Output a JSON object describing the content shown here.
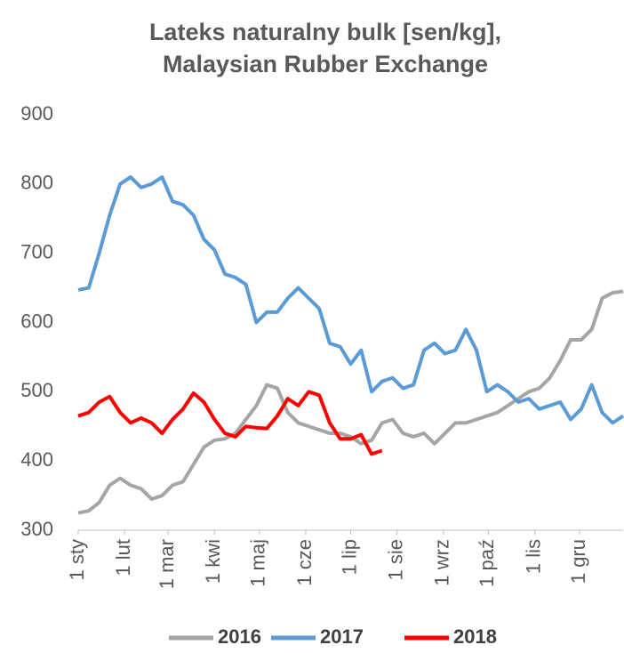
{
  "chart_data": {
    "type": "line",
    "title": [
      "Lateks naturalny bulk [sen/kg],",
      "Malaysian Rubber Exchange"
    ],
    "x": [
      1,
      8,
      15,
      22,
      29,
      36,
      43,
      50,
      57,
      64,
      71,
      78,
      85,
      92,
      99,
      106,
      113,
      120,
      127,
      134,
      141,
      148,
      155,
      162,
      169,
      176,
      183,
      190,
      197,
      204,
      211,
      218,
      225,
      232,
      239,
      246,
      253,
      260,
      267,
      274,
      281,
      288,
      295,
      302,
      309,
      316,
      323,
      330,
      337,
      344,
      351,
      358,
      365
    ],
    "xlim": [
      1,
      365
    ],
    "xticks": [
      {
        "value": 1,
        "label": "1 sty"
      },
      {
        "value": 32,
        "label": "1 lut"
      },
      {
        "value": 61,
        "label": "1 mar"
      },
      {
        "value": 92,
        "label": "1 kwi"
      },
      {
        "value": 122,
        "label": "1 maj"
      },
      {
        "value": 153,
        "label": "1 cze"
      },
      {
        "value": 183,
        "label": "1 lip"
      },
      {
        "value": 214,
        "label": "1 sie"
      },
      {
        "value": 245,
        "label": "1 wrz"
      },
      {
        "value": 275,
        "label": "1 paź"
      },
      {
        "value": 306,
        "label": "1 lis"
      },
      {
        "value": 336,
        "label": "1 gru"
      }
    ],
    "ylim": [
      300,
      900
    ],
    "yticks": [
      300,
      400,
      500,
      600,
      700,
      800,
      900
    ],
    "grid": false,
    "legend": "bottom",
    "series": [
      {
        "name": "2016",
        "color": "#a5a5a5",
        "values": [
          325,
          328,
          340,
          365,
          375,
          365,
          360,
          345,
          350,
          365,
          370,
          395,
          420,
          430,
          432,
          440,
          460,
          480,
          510,
          505,
          470,
          455,
          450,
          445,
          440,
          440,
          435,
          425,
          430,
          455,
          460,
          440,
          435,
          440,
          425,
          440,
          455,
          455,
          460,
          465,
          470,
          480,
          490,
          500,
          505,
          520,
          545,
          575,
          575,
          590,
          635,
          643,
          645
        ]
      },
      {
        "name": "2017",
        "color": "#5b9bd5",
        "values": [
          647,
          650,
          700,
          755,
          800,
          810,
          795,
          800,
          810,
          775,
          770,
          755,
          720,
          705,
          670,
          665,
          655,
          600,
          615,
          615,
          635,
          650,
          635,
          620,
          570,
          565,
          540,
          560,
          500,
          515,
          520,
          505,
          510,
          560,
          570,
          555,
          560,
          590,
          560,
          500,
          510,
          500,
          485,
          490,
          475,
          480,
          485,
          460,
          475,
          510,
          470,
          455,
          465
        ]
      },
      {
        "name": "2018",
        "color": "#ff0000",
        "values": [
          465,
          470,
          485,
          493,
          470,
          455,
          462,
          455,
          440,
          460,
          475,
          498,
          485,
          460,
          440,
          435,
          450,
          448,
          447,
          465,
          490,
          480,
          500,
          495,
          455,
          432,
          432,
          438,
          410,
          415,
          null,
          null,
          null,
          null,
          null,
          null,
          null,
          null,
          null,
          null,
          null,
          null,
          null,
          null,
          null,
          null,
          null,
          null,
          null,
          null,
          null,
          null,
          null
        ]
      }
    ]
  }
}
